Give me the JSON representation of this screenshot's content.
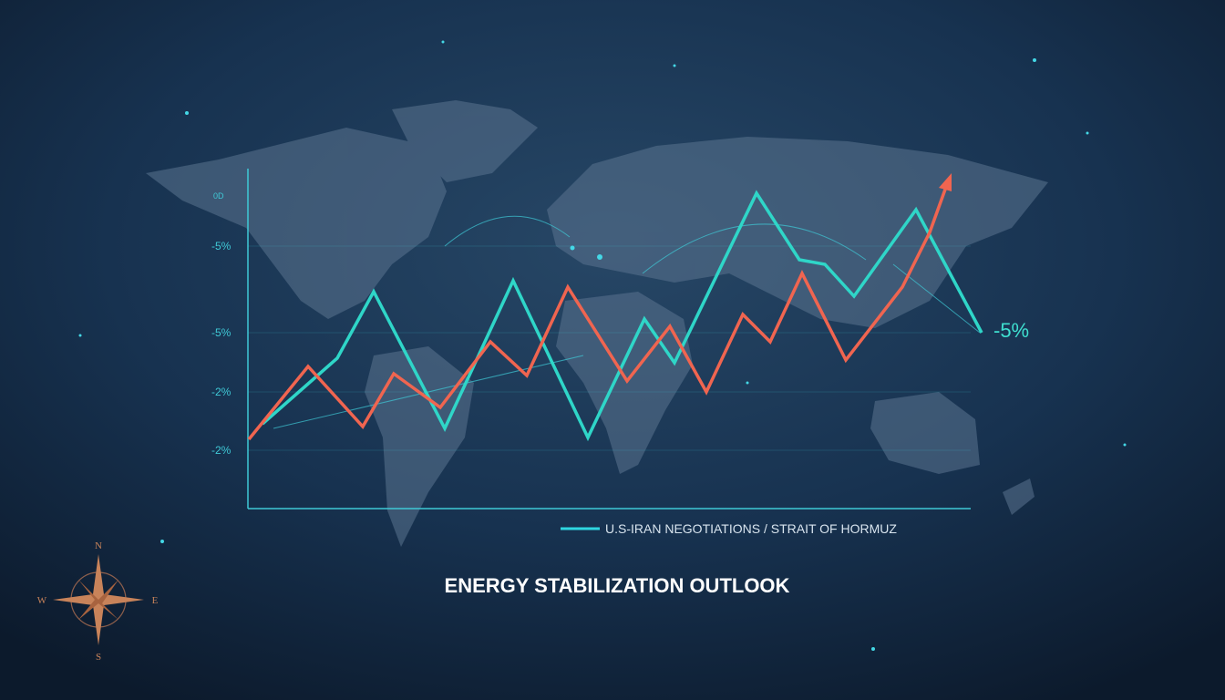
{
  "title": "ENERGY STABILIZATION OUTLOOK",
  "legend": "U.S-IRAN NEGOTIATIONS / STRAIT OF HORMUZ",
  "axis_labels": [
    "0D",
    "-5%",
    "-5%",
    "-2%",
    "-2%"
  ],
  "end_label": "-5%",
  "compass": {
    "n": "N",
    "e": "E",
    "s": "S",
    "w": "W"
  }
}
